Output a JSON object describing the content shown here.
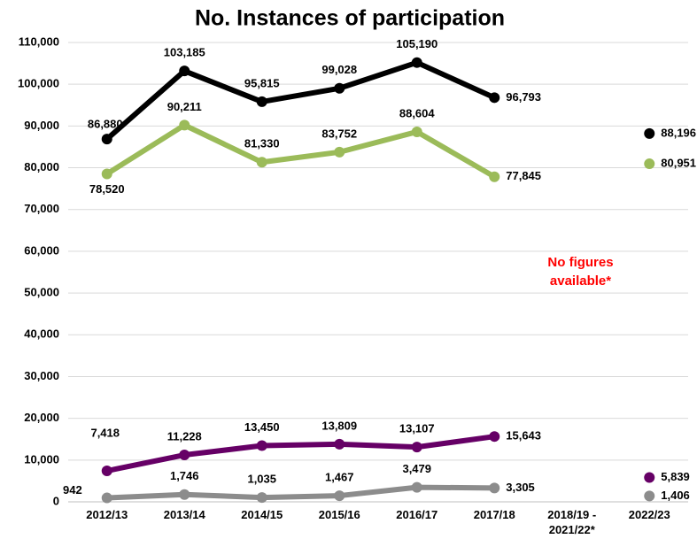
{
  "chart_data": {
    "type": "line",
    "title": "No. Instances of participation",
    "categories": [
      "2012/13",
      "2013/14",
      "2014/15",
      "2015/16",
      "2016/17",
      "2017/18",
      "2018/19 - 2021/22*",
      "2022/23"
    ],
    "series": [
      {
        "color": "#000000",
        "values": [
          86880,
          103185,
          95815,
          99028,
          105190,
          96793,
          null,
          88196
        ],
        "value_labels": [
          "86,880",
          "103,185",
          "95,815",
          "99,028",
          "105,190",
          "96,793",
          null,
          "88,196"
        ]
      },
      {
        "color": "#9bbb59",
        "values": [
          78520,
          90211,
          81330,
          83752,
          88604,
          77845,
          null,
          80951
        ],
        "value_labels": [
          "78,520",
          "90,211",
          "81,330",
          "83,752",
          "88,604",
          "77,845",
          null,
          "80,951"
        ]
      },
      {
        "color": "#660066",
        "values": [
          7418,
          11228,
          13450,
          13809,
          13107,
          15643,
          null,
          5839
        ],
        "value_labels": [
          "7,418",
          "11,228",
          "13,450",
          "13,809",
          "13,107",
          "15,643",
          null,
          "5,839"
        ]
      },
      {
        "color": "#8c8c8c",
        "values": [
          942,
          1746,
          1035,
          1467,
          3479,
          3305,
          null,
          1406
        ],
        "value_labels": [
          "942",
          "1,746",
          "1,035",
          "1,467",
          "3,479",
          "3,305",
          null,
          "1,406"
        ]
      }
    ],
    "annotations": [
      {
        "text": "No figures available*",
        "color": "#ff0000"
      }
    ],
    "ylim": [
      0,
      110000
    ],
    "yticks": [
      0,
      {
        "value": 10000,
        "label": "10,000"
      },
      {
        "value": 20000,
        "label": "20,000"
      },
      {
        "value": 30000,
        "label": "30,000"
      },
      {
        "value": 40000,
        "label": "40,000"
      },
      {
        "value": 50000,
        "label": "50,000"
      },
      {
        "value": 60000,
        "label": "60,000"
      },
      {
        "value": 70000,
        "label": "70,000"
      },
      {
        "value": 80000,
        "label": "80,000"
      },
      {
        "value": 90000,
        "label": "90,000"
      },
      {
        "value": 100000,
        "label": "100,000"
      },
      {
        "value": 110000,
        "label": "110,000"
      }
    ],
    "grid": true
  }
}
